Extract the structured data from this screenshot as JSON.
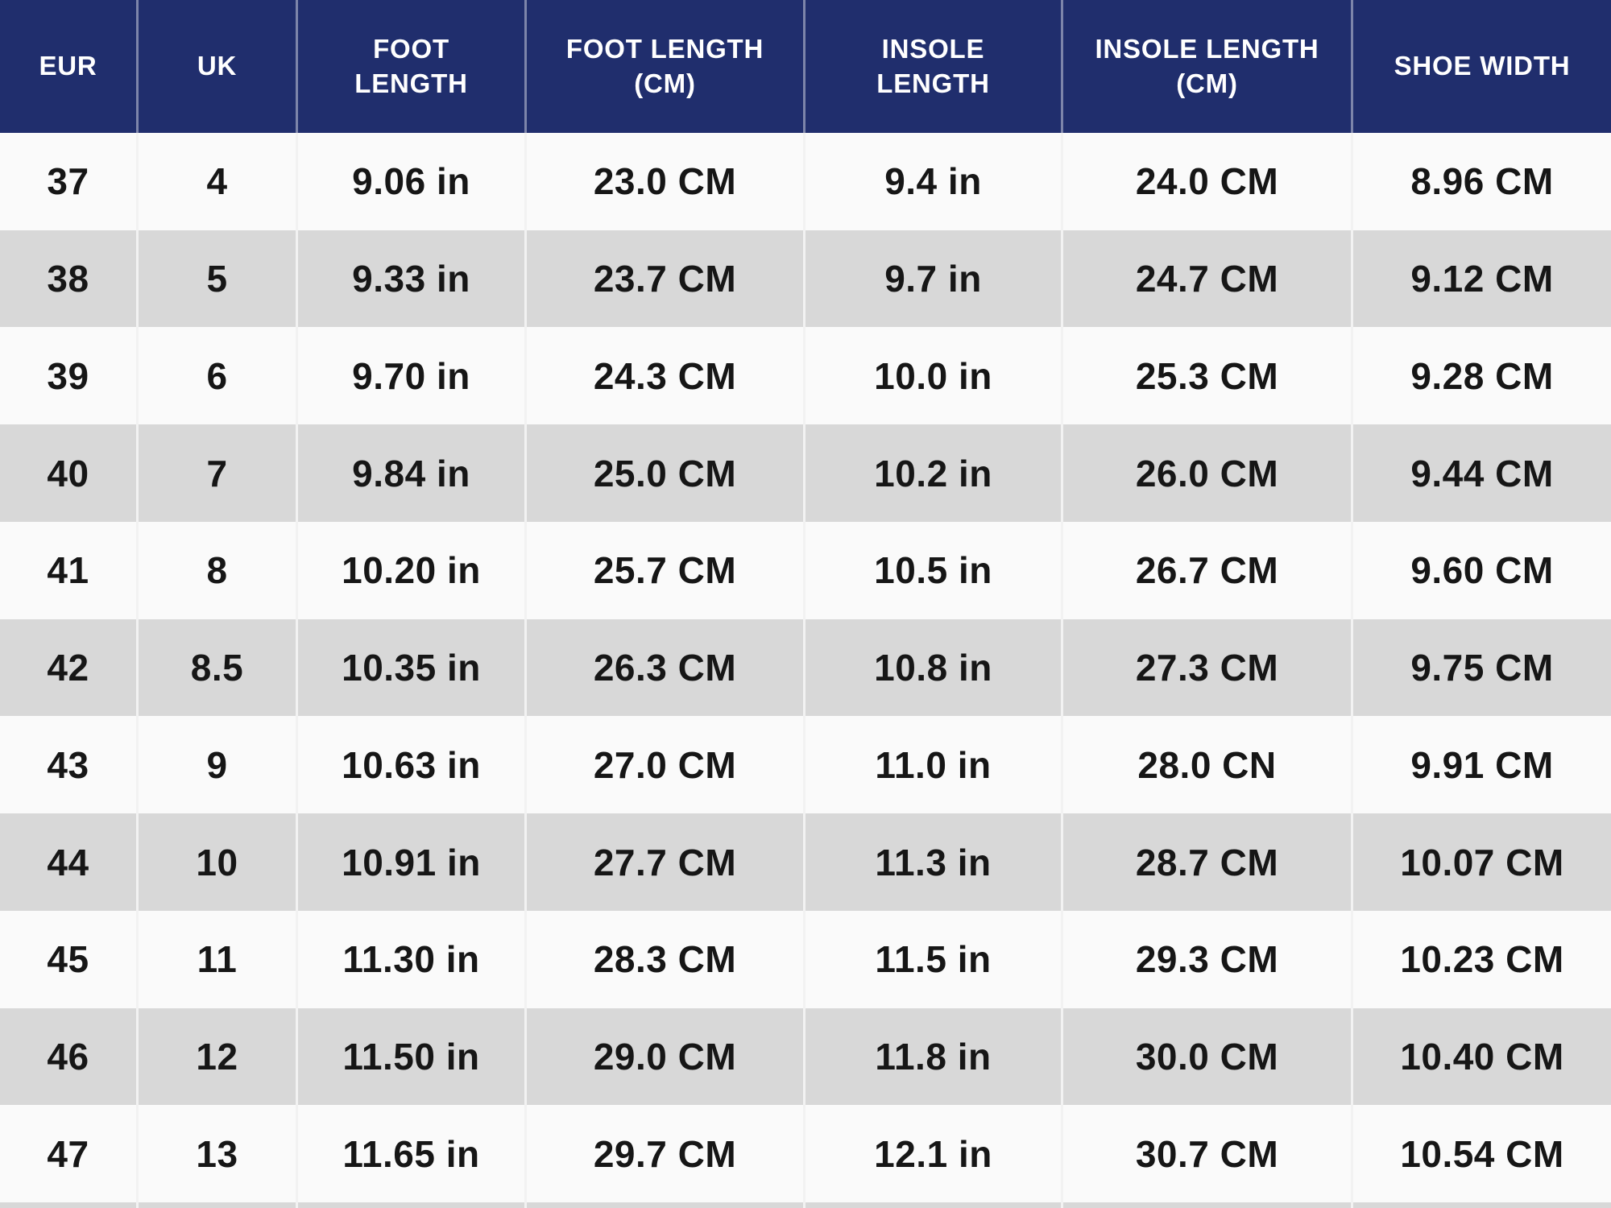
{
  "chart_data": {
    "type": "table",
    "columns": [
      "EUR",
      "UK",
      "FOOT LENGTH",
      "FOOT LENGTH (CM)",
      "INSOLE LENGTH",
      "INSOLE LENGTH (CM)",
      "SHOE WIDTH"
    ],
    "rows": [
      [
        "37",
        "4",
        "9.06 in",
        "23.0 CM",
        "9.4 in",
        "24.0 CM",
        "8.96 CM"
      ],
      [
        "38",
        "5",
        "9.33 in",
        "23.7 CM",
        "9.7 in",
        "24.7 CM",
        "9.12 CM"
      ],
      [
        "39",
        "6",
        "9.70 in",
        "24.3 CM",
        "10.0 in",
        "25.3 CM",
        "9.28 CM"
      ],
      [
        "40",
        "7",
        "9.84 in",
        "25.0 CM",
        "10.2 in",
        "26.0 CM",
        "9.44 CM"
      ],
      [
        "41",
        "8",
        "10.20 in",
        "25.7 CM",
        "10.5 in",
        "26.7 CM",
        "9.60 CM"
      ],
      [
        "42",
        "8.5",
        "10.35 in",
        "26.3 CM",
        "10.8 in",
        "27.3 CM",
        "9.75 CM"
      ],
      [
        "43",
        "9",
        "10.63 in",
        "27.0 CM",
        "11.0 in",
        "28.0 CN",
        "9.91 CM"
      ],
      [
        "44",
        "10",
        "10.91 in",
        "27.7 CM",
        "11.3 in",
        "28.7 CM",
        "10.07 CM"
      ],
      [
        "45",
        "11",
        "11.30 in",
        "28.3 CM",
        "11.5 in",
        "29.3 CM",
        "10.23 CM"
      ],
      [
        "46",
        "12",
        "11.50 in",
        "29.0 CM",
        "11.8 in",
        "30.0 CM",
        "10.40 CM"
      ],
      [
        "47",
        "13",
        "11.65 in",
        "29.7 CM",
        "12.1 in",
        "30.7 CM",
        "10.54 CM"
      ]
    ],
    "layout": {
      "legend": "none",
      "grid": "alternating-row-stripes",
      "header_position": "top"
    }
  },
  "colors": {
    "header_bg": "#202e6d",
    "header_text": "#ffffff",
    "row_bg": "#fafafa",
    "row_alt_bg": "#d8d8d8",
    "cell_text": "#161616"
  }
}
